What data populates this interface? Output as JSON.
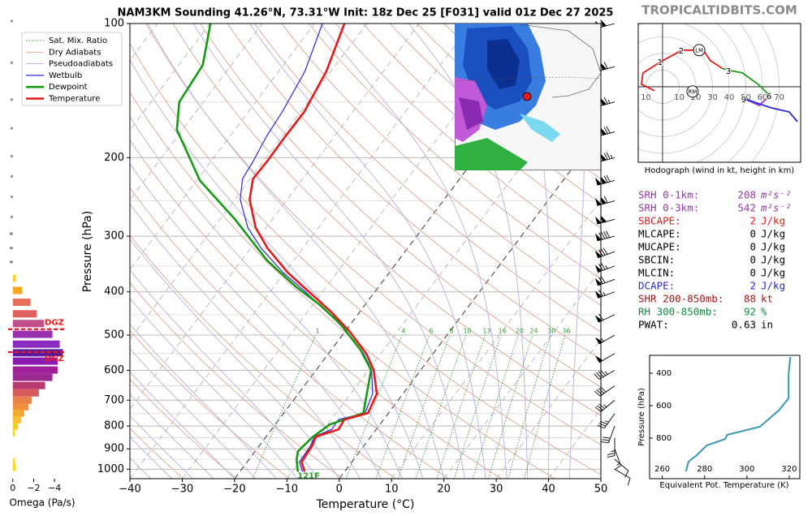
{
  "brand": "TROPICALTIDBITS.COM",
  "chart_data": [
    {
      "type": "skewt",
      "title": "NAM3KM Sounding 41.26°N, 73.31°W Init: 18z Dec 25 [F031] valid 01z Dec 27 2025",
      "xlabel": "Temperature (°C)",
      "ylabel": "Pressure (hPa)",
      "xlim": [
        -40,
        50
      ],
      "ylim": [
        1050,
        100
      ],
      "log_y": true,
      "xticks": [
        {
          "value": -40,
          "label": "−40"
        },
        {
          "value": -30,
          "label": "−30"
        },
        {
          "value": -20,
          "label": "−20"
        },
        {
          "value": -10,
          "label": "−10"
        },
        0,
        10,
        20,
        30,
        40,
        50
      ],
      "yticks": [
        100,
        200,
        300,
        400,
        500,
        600,
        700,
        800,
        900,
        1000
      ],
      "reference_lines": [
        {
          "name": "Sat. Mix. Ratio",
          "color": "#3a9a3a",
          "style": "dotted"
        },
        {
          "name": "Dry Adiabats",
          "color": "#dca792",
          "style": "solid"
        },
        {
          "name": "Pseudoadiabats",
          "color": "#b4b0e2",
          "style": "solid"
        }
      ],
      "mixing_ratios": [
        1,
        4,
        6,
        8,
        10,
        13,
        16,
        20,
        24,
        30,
        36
      ],
      "series": [
        {
          "name": "Wetbulb",
          "color": "#2a2ad0",
          "pressure": [
            1013,
            963,
            885,
            845,
            814,
            774,
            748,
            677,
            599,
            551,
            492,
            446,
            398,
            362,
            319,
            287,
            248,
            223,
            203,
            179,
            158,
            128,
            100
          ],
          "values": [
            -8.0,
            -10.0,
            -10.2,
            -10.8,
            -8.5,
            -8.6,
            -4.5,
            -5.8,
            -9.4,
            -13.2,
            -19.6,
            -25.8,
            -33.6,
            -40.3,
            -48.0,
            -53.5,
            -59.0,
            -61.5,
            -62.0,
            -63.0,
            -63.5,
            -65.0,
            -68.5
          ]
        },
        {
          "name": "Dewpoint",
          "color": "#169a16",
          "pressure": [
            1013,
            951,
            912,
            848,
            794,
            748,
            599,
            540,
            472,
            428,
            389,
            340,
            275,
            225,
            173,
            150,
            124,
            100
          ],
          "values": [
            -8.9,
            -10.9,
            -11.8,
            -11.1,
            -9.6,
            -4.8,
            -9.5,
            -14.4,
            -22.0,
            -28.6,
            -35.9,
            -45.1,
            -57.1,
            -69.4,
            -81.1,
            -84.6,
            -85.4,
            -89.9
          ]
        },
        {
          "name": "Temperature",
          "color": "#e41a1c",
          "pressure": [
            1013,
            963,
            885,
            845,
            814,
            774,
            748,
            677,
            599,
            551,
            492,
            446,
            398,
            362,
            319,
            287,
            248,
            223,
            203,
            179,
            158,
            128,
            100
          ],
          "values": [
            -7.6,
            -9.6,
            -9.9,
            -10.5,
            -7.2,
            -7.5,
            -3.9,
            -5.0,
            -9.0,
            -12.7,
            -19.0,
            -25.1,
            -32.9,
            -39.4,
            -46.8,
            -52.0,
            -57.2,
            -59.5,
            -59.3,
            -59.4,
            -59.3,
            -60.9,
            -64.3
          ]
        }
      ],
      "winds": {
        "pressure": [
          100,
          125,
          150,
          175,
          200,
          225,
          250,
          275,
          300,
          325,
          350,
          375,
          400,
          450,
          500,
          550,
          600,
          650,
          700,
          750,
          800,
          850,
          900,
          950,
          1000
        ],
        "speed": [
          100,
          110,
          115,
          120,
          125,
          120,
          110,
          100,
          90,
          80,
          75,
          70,
          65,
          60,
          55,
          50,
          45,
          40,
          35,
          35,
          30,
          25,
          15,
          10,
          10
        ],
        "direction": [
          255,
          255,
          255,
          255,
          255,
          255,
          255,
          255,
          255,
          250,
          250,
          250,
          250,
          245,
          240,
          240,
          240,
          235,
          230,
          215,
          200,
          180,
          160,
          130,
          120
        ]
      },
      "annotation": "121F"
    },
    {
      "type": "bar",
      "orientation": "horizontal",
      "xlabel": "Omega (Pa/s)",
      "xlim": [
        0.45,
        -5
      ],
      "ylim": [
        1050,
        100
      ],
      "log_y": true,
      "xticks": [
        0,
        {
          "value": -2,
          "label": "−2"
        },
        {
          "value": -4,
          "label": "−4"
        }
      ],
      "pressure": [
        100,
        124,
        150,
        174,
        201,
        223,
        248,
        275,
        300,
        323,
        347,
        373,
        397,
        422,
        448,
        471,
        498,
        524,
        548,
        572,
        599,
        622,
        649,
        674,
        700,
        724,
        748,
        774,
        800,
        828,
        963,
        990
      ],
      "values": [
        0.2,
        0.2,
        0.2,
        0.2,
        0.2,
        0.2,
        0.2,
        0.2,
        0.3,
        0.3,
        0.3,
        -0.3,
        -0.9,
        -1.7,
        -2.3,
        -3.0,
        -3.8,
        -4.5,
        -4.8,
        -4.3,
        -4.3,
        -3.8,
        -3.1,
        -2.5,
        -1.8,
        -1.5,
        -1.1,
        -0.8,
        -0.5,
        -0.2,
        -0.2,
        -0.3
      ],
      "colors": [
        "#888888",
        "#888888",
        "#888888",
        "#888888",
        "#888888",
        "#888888",
        "#888888",
        "#888888",
        "#888888",
        "#888888",
        "#888888",
        "#f7d12a",
        "#f5a623",
        "#e8705a",
        "#e06060",
        "#c0508a",
        "#9b30b0",
        "#8a2cc0",
        "#5a1aa0",
        "#8a1ab0",
        "#a0209a",
        "#9a2a90",
        "#b83a70",
        "#d85a5a",
        "#e8804a",
        "#f09040",
        "#f5a830",
        "#f7c030",
        "#f5d020",
        "#f5dc20",
        "#f5dc20",
        "#f5dc20"
      ],
      "annotations": [
        {
          "text": "DGZ",
          "pressure": 485
        },
        {
          "text": "DGZ",
          "pressure": 546
        }
      ]
    },
    {
      "type": "hodograph",
      "xlabel": "Hodograph (wind in kt, height in km)",
      "xlim": [
        -14.6,
        82.9
      ],
      "ylim": [
        -45.4,
        38
      ],
      "xticks": [
        {
          "value": -10,
          "label": "10"
        },
        10,
        20,
        30,
        40,
        50,
        60,
        70
      ],
      "series": [
        {
          "color": "#e41a1c",
          "u": [
            -4.9,
            -12.7,
            -11.7,
            -1.0,
            11.7,
            24.4,
            28.8,
            36.0
          ],
          "v": [
            -2.4,
            1.5,
            8.3,
            15.1,
            22.0,
            22.0,
            15.6,
            11.0
          ]
        },
        {
          "color": "#1f9a1f",
          "u": [
            36.0,
            40.0,
            48.0,
            58.0,
            64.4
          ],
          "v": [
            11.0,
            9.8,
            8.3,
            1.0,
            -5.4
          ]
        },
        {
          "color": "#9a3ac8",
          "u": [
            64.4,
            58.0,
            49.3
          ],
          "v": [
            -5.4,
            -11.2,
            -7.3
          ]
        },
        {
          "color": "#2a2ad0",
          "u": [
            49.3,
            65.4,
            76.0,
            81.0
          ],
          "v": [
            -7.3,
            -12.7,
            -15.1,
            -21.0
          ]
        }
      ],
      "height_labels": [
        {
          "label": 1,
          "u": -1.0,
          "v": 15.1
        },
        {
          "label": 2,
          "u": 11.7,
          "v": 22.0
        },
        {
          "label": 3,
          "u": 40.0,
          "v": 9.8
        },
        {
          "label": 6,
          "u": 64.4,
          "v": -5.4
        },
        {
          "label": 9,
          "u": 49.3,
          "v": -7.3
        }
      ],
      "storm_motion": [
        {
          "label": "RM",
          "u": 18.0,
          "v": -2.9
        },
        {
          "label": "LM",
          "u": 22.0,
          "v": 22.0
        }
      ]
    },
    {
      "type": "line",
      "xlabel": "Equivalent Pot. Temperature (K)",
      "ylabel": "Pressure (hPa)",
      "xlim": [
        254,
        325
      ],
      "ylim": [
        1050,
        290
      ],
      "log_y": false,
      "xticks": [
        260,
        280,
        300,
        320
      ],
      "yticks": [
        400,
        600,
        800
      ],
      "color": "#3a98b0",
      "pressure": [
        1005,
        945,
        905,
        845,
        805,
        780,
        730,
        630,
        555,
        405,
        300
      ],
      "values": [
        271.2,
        272.4,
        276.3,
        281.0,
        289.8,
        290.6,
        306.1,
        315.0,
        319.7,
        319.7,
        320.5
      ]
    }
  ],
  "parameters": [
    {
      "label": "SRH 0-1km:",
      "value": 208,
      "unit": "m²s⁻²",
      "color": "#8e3d9e"
    },
    {
      "label": "SRH 0-3km:",
      "value": 542,
      "unit": "m²s⁻²",
      "color": "#8e3d9e"
    },
    {
      "label": "SBCAPE:",
      "value": 2,
      "unit": "J/kg",
      "color": "#d42020"
    },
    {
      "label": "MLCAPE:",
      "value": 0,
      "unit": "J/kg",
      "color": "#000000"
    },
    {
      "label": "MUCAPE:",
      "value": 0,
      "unit": "J/kg",
      "color": "#000000"
    },
    {
      "label": "SBCIN:",
      "value": 0,
      "unit": "J/kg",
      "color": "#000000"
    },
    {
      "label": "MLCIN:",
      "value": 0,
      "unit": "J/kg",
      "color": "#000000"
    },
    {
      "label": "DCAPE:",
      "value": 2,
      "unit": "J/kg",
      "color": "#2a2ac0"
    },
    {
      "label": "SHR 200-850mb:",
      "value": 88,
      "unit": "kt",
      "color": "#a01a1a"
    },
    {
      "label": "RH 300-850mb:",
      "value": 92,
      "unit": "%",
      "color": "#108a40"
    },
    {
      "label": "PWAT:",
      "value": 0.63,
      "unit": "in",
      "color": "#000000"
    }
  ]
}
